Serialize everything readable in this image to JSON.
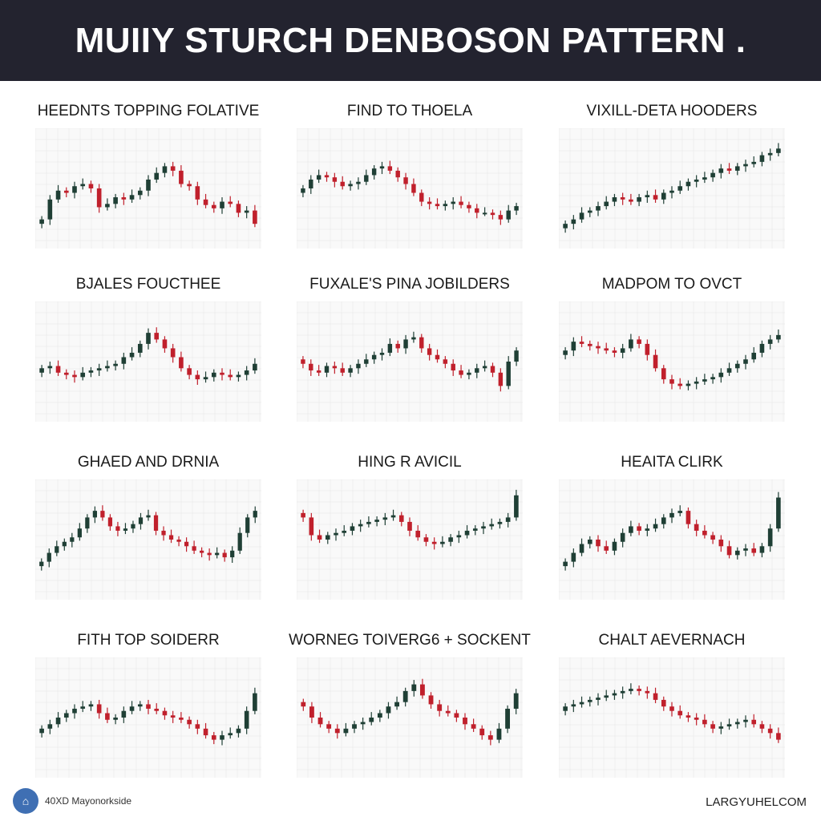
{
  "header": {
    "title": "MUIIY STURCH DENBOSON PATTERN ."
  },
  "footer": {
    "left_text": "40XD Mayonorkside",
    "right_text": "LARGYUHELCOM",
    "logo_icon": "chart-logo-icon"
  },
  "colors": {
    "bull": "#1f3f35",
    "bear": "#c0202c",
    "header_bg": "#23232f",
    "grid": "#e6e6e6"
  },
  "chart_data": [
    {
      "type": "candlestick",
      "title": "HEEDNTS TOPPING FOLATIVE",
      "close": [
        22,
        40,
        48,
        46,
        52,
        54,
        50,
        33,
        36,
        42,
        40,
        44,
        48,
        58,
        64,
        70,
        66,
        54,
        52,
        40,
        35,
        32,
        38,
        36,
        28,
        30,
        18
      ]
    },
    {
      "type": "candlestick",
      "title": "FIND TO THOELA",
      "close": [
        50,
        58,
        62,
        60,
        56,
        52,
        54,
        56,
        62,
        68,
        70,
        66,
        60,
        54,
        46,
        38,
        36,
        34,
        36,
        38,
        35,
        32,
        28,
        28,
        26,
        22,
        30,
        34
      ]
    },
    {
      "type": "candlestick",
      "title": "VIXILL-DETA HOODERS",
      "close": [
        18,
        22,
        28,
        30,
        34,
        38,
        42,
        40,
        38,
        42,
        44,
        40,
        46,
        48,
        52,
        56,
        58,
        60,
        64,
        68,
        66,
        70,
        72,
        74,
        80,
        82,
        86
      ]
    },
    {
      "type": "candlestick",
      "title": "BJALES FOUCTHEE",
      "close": [
        44,
        46,
        40,
        38,
        36,
        40,
        42,
        44,
        46,
        48,
        54,
        58,
        66,
        76,
        70,
        62,
        54,
        44,
        38,
        34,
        36,
        40,
        38,
        36,
        38,
        42,
        48
      ]
    },
    {
      "type": "candlestick",
      "title": "FUXALE'S PINA JOBILDERS",
      "close": [
        48,
        42,
        40,
        46,
        44,
        40,
        44,
        48,
        52,
        56,
        58,
        66,
        62,
        70,
        72,
        62,
        56,
        52,
        48,
        42,
        38,
        40,
        44,
        46,
        40,
        28,
        50,
        60
      ]
    },
    {
      "type": "candlestick",
      "title": "MADPOM TO OVCT",
      "close": [
        60,
        68,
        66,
        64,
        62,
        60,
        58,
        62,
        70,
        66,
        56,
        44,
        34,
        30,
        28,
        30,
        32,
        34,
        36,
        40,
        44,
        48,
        52,
        58,
        66,
        70,
        74
      ]
    },
    {
      "type": "candlestick",
      "title": "GHAED AND DRNIA",
      "close": [
        30,
        38,
        44,
        48,
        52,
        60,
        70,
        76,
        70,
        62,
        58,
        60,
        64,
        70,
        72,
        58,
        54,
        50,
        48,
        44,
        40,
        38,
        36,
        38,
        34,
        40,
        56,
        70,
        76
      ]
    },
    {
      "type": "candlestick",
      "title": "HING R AVICIL",
      "close": [
        70,
        54,
        50,
        54,
        56,
        58,
        62,
        64,
        66,
        68,
        70,
        72,
        66,
        58,
        52,
        48,
        46,
        48,
        52,
        54,
        58,
        60,
        62,
        64,
        66,
        70,
        90
      ]
    },
    {
      "type": "candlestick",
      "title": "HEAITA CLIRK",
      "close": [
        30,
        38,
        46,
        50,
        44,
        40,
        48,
        56,
        62,
        58,
        60,
        64,
        70,
        74,
        76,
        64,
        58,
        54,
        50,
        44,
        36,
        40,
        42,
        38,
        44,
        60,
        88
      ]
    },
    {
      "type": "candlestick",
      "title": "FITH TOP SOIDERR",
      "close": [
        40,
        44,
        50,
        54,
        58,
        60,
        62,
        54,
        48,
        50,
        56,
        60,
        62,
        58,
        56,
        52,
        50,
        48,
        44,
        40,
        34,
        30,
        34,
        36,
        40,
        56,
        72
      ]
    },
    {
      "type": "candlestick",
      "title": "WORNEG TOIVERG6 + SOCKENT",
      "close": [
        60,
        50,
        44,
        40,
        36,
        40,
        44,
        46,
        50,
        54,
        60,
        64,
        74,
        80,
        70,
        62,
        56,
        54,
        50,
        44,
        40,
        34,
        30,
        40,
        58,
        72
      ]
    },
    {
      "type": "candlestick",
      "title": "CHALT AEVERNACH",
      "close": [
        60,
        62,
        64,
        66,
        68,
        70,
        72,
        74,
        76,
        74,
        72,
        66,
        60,
        56,
        52,
        50,
        48,
        44,
        40,
        42,
        44,
        46,
        48,
        44,
        40,
        36,
        30
      ]
    }
  ]
}
